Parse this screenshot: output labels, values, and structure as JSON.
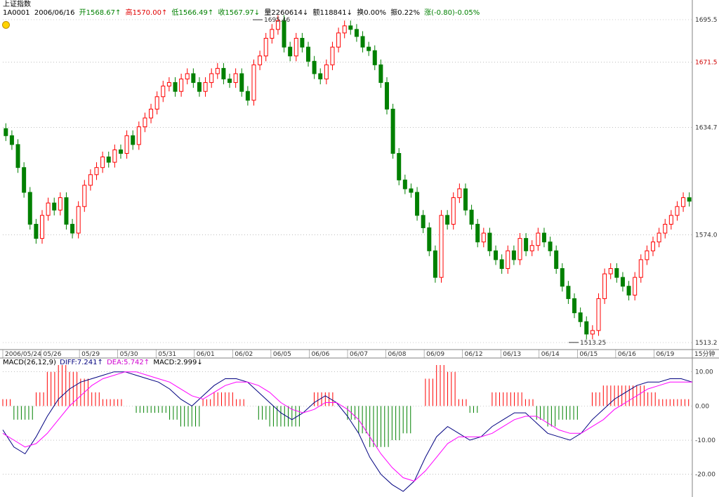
{
  "header": {
    "title": "上证指数",
    "code": "1A0001",
    "date": "2006/06/16",
    "open": "开1568.67↑",
    "high": "高1570.00↑",
    "low": "低1566.49↑",
    "close": "收1567.97↓",
    "volume": "量2260614↓",
    "amount": "额118841↓",
    "turnover": "换0.00%",
    "amplitude": "振0.22%",
    "change": "涨(-0.80)-0.05%"
  },
  "macd_header": {
    "params": "MACD(26,12,9)",
    "diff": "DIFF:7.241↑",
    "dea": "DEA:5.742↑",
    "macd": "MACD:2.999↓"
  },
  "period_label": "15分钟",
  "colors": {
    "up": "#ff0000",
    "down": "#008000",
    "diff": "#000080",
    "dea": "#ff00ff",
    "grid": "#999999"
  },
  "chart_data": [
    {
      "type": "candlestick",
      "title": "上证指数",
      "x_categories": [
        "2006/05/24",
        "05/26",
        "05/29",
        "05/30",
        "05/31",
        "06/01",
        "06/02",
        "06/05",
        "06/06",
        "06/07",
        "06/08",
        "06/09",
        "06/12",
        "06/13",
        "06/14",
        "06/15",
        "06/16",
        "06/19"
      ],
      "y_ticks": [
        "1695.5",
        "1671.5",
        "1634.7",
        "1574.0",
        "1513.2"
      ],
      "ylim": [
        1513.2,
        1695.5
      ],
      "annotations": [
        {
          "text": "1695.46",
          "value": 1695.46
        },
        {
          "text": "1513.25",
          "value": 1513.25
        }
      ],
      "closes": [
        1630,
        1625,
        1612,
        1598,
        1580,
        1572,
        1585,
        1592,
        1588,
        1595,
        1580,
        1575,
        1590,
        1602,
        1608,
        1612,
        1618,
        1615,
        1622,
        1620,
        1630,
        1625,
        1635,
        1640,
        1645,
        1652,
        1658,
        1660,
        1655,
        1662,
        1665,
        1660,
        1655,
        1660,
        1665,
        1668,
        1662,
        1660,
        1665,
        1655,
        1650,
        1670,
        1675,
        1685,
        1690,
        1695,
        1680,
        1675,
        1685,
        1680,
        1672,
        1665,
        1662,
        1670,
        1680,
        1688,
        1692,
        1690,
        1686,
        1680,
        1678,
        1670,
        1660,
        1645,
        1620,
        1605,
        1600,
        1598,
        1585,
        1578,
        1565,
        1550,
        1585,
        1580,
        1595,
        1600,
        1588,
        1580,
        1570,
        1575,
        1565,
        1560,
        1555,
        1565,
        1560,
        1572,
        1565,
        1568,
        1575,
        1570,
        1565,
        1555,
        1545,
        1538,
        1530,
        1525,
        1518,
        1520,
        1538,
        1552,
        1555,
        1550,
        1545,
        1540,
        1550,
        1560,
        1565,
        1570,
        1575,
        1580,
        1585,
        1590,
        1595,
        1593
      ],
      "label": "candles"
    },
    {
      "type": "line",
      "title": "MACD(26,12,9)",
      "y_ticks": [
        "10.00",
        "0.00",
        "-10.00",
        "-20.00"
      ],
      "ylim": [
        -25,
        12
      ],
      "series": [
        {
          "name": "DIFF",
          "values": [
            -7,
            -12,
            -14,
            -9,
            -3,
            2,
            5,
            7,
            8,
            9,
            10,
            10,
            9,
            8,
            7,
            5,
            2,
            0,
            3,
            6,
            8,
            8,
            7,
            4,
            1,
            -2,
            -4,
            -2,
            1,
            3,
            1,
            -3,
            -8,
            -15,
            -20,
            -23,
            -25,
            -22,
            -15,
            -9,
            -6,
            -8,
            -10,
            -9,
            -6,
            -4,
            -2,
            -2,
            -5,
            -8,
            -9,
            -10,
            -8,
            -4,
            -1,
            2,
            4,
            6,
            7,
            7,
            8,
            8,
            7
          ]
        },
        {
          "name": "DEA",
          "values": [
            -8,
            -10,
            -12,
            -11,
            -8,
            -4,
            0,
            3,
            6,
            8,
            9,
            10,
            10,
            9,
            8,
            7,
            5,
            3,
            2,
            4,
            6,
            7,
            7,
            6,
            4,
            1,
            -1,
            -2,
            -1,
            1,
            1,
            -1,
            -4,
            -9,
            -14,
            -18,
            -21,
            -22,
            -19,
            -15,
            -11,
            -9,
            -9,
            -9,
            -8,
            -6,
            -4,
            -3,
            -3,
            -5,
            -7,
            -8,
            -8,
            -6,
            -4,
            -1,
            1,
            3,
            5,
            6,
            7,
            7,
            7
          ]
        }
      ],
      "label": "macd"
    }
  ]
}
